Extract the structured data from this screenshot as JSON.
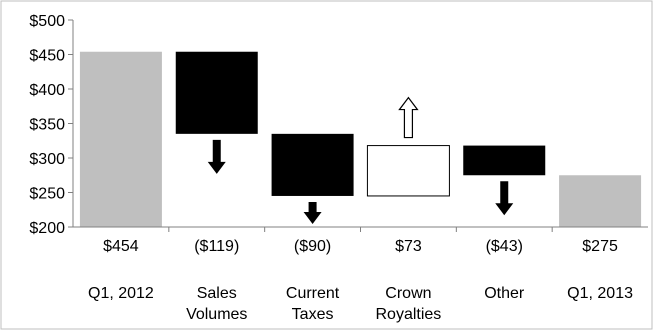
{
  "chart_data": {
    "type": "bar",
    "variant": "waterfall",
    "title": "",
    "xlabel": "",
    "ylabel": "",
    "ylim": [
      200,
      500
    ],
    "yticks": [
      200,
      250,
      300,
      350,
      400,
      450,
      500
    ],
    "ytick_labels": [
      "$200",
      "$250",
      "$300",
      "$350",
      "$400",
      "$450",
      "$500"
    ],
    "grid": false,
    "categories": [
      [
        "Q1, 2012"
      ],
      [
        "Sales",
        "Volumes"
      ],
      [
        "Current",
        "Taxes"
      ],
      [
        "Crown",
        "Royalties"
      ],
      [
        "Other"
      ],
      [
        "Q1, 2013"
      ]
    ],
    "value_labels": [
      "$454",
      "($119)",
      "($90)",
      "$73",
      "($43)",
      "$275"
    ],
    "bars": [
      {
        "kind": "total",
        "start": 200,
        "end": 454,
        "color": "#bfbfbf"
      },
      {
        "kind": "decrease",
        "start": 454,
        "end": 335,
        "color": "#000000",
        "arrow": "down"
      },
      {
        "kind": "decrease",
        "start": 335,
        "end": 245,
        "color": "#000000",
        "arrow": "down"
      },
      {
        "kind": "increase",
        "start": 245,
        "end": 318,
        "color": "#ffffff",
        "arrow": "up"
      },
      {
        "kind": "decrease",
        "start": 318,
        "end": 275,
        "color": "#000000",
        "arrow": "down"
      },
      {
        "kind": "total",
        "start": 200,
        "end": 275,
        "color": "#bfbfbf"
      }
    ]
  }
}
